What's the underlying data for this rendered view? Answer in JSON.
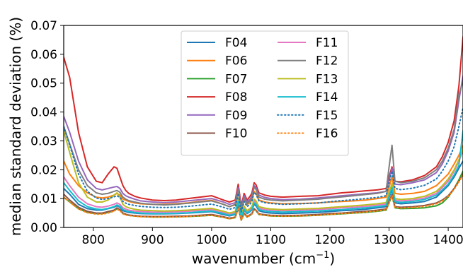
{
  "chart_data": {
    "type": "line",
    "title": "",
    "xlabel": "wavenumber (cm",
    "xlabel_superscript": "−1",
    "xlabel_suffix": ")",
    "ylabel": "median standard deviation (%)",
    "xlim": [
      750,
      1425
    ],
    "ylim": [
      0,
      0.07
    ],
    "xticks": [
      800,
      900,
      1000,
      1100,
      1200,
      1300,
      1400
    ],
    "yticks": [
      0.0,
      0.01,
      0.02,
      0.03,
      0.04,
      0.05,
      0.06,
      0.07
    ],
    "xtick_labels": [
      "800",
      "900",
      "1000",
      "1100",
      "1200",
      "1300",
      "1400"
    ],
    "ytick_labels": [
      "0.00",
      "0.01",
      "0.02",
      "0.03",
      "0.04",
      "0.05",
      "0.06",
      "0.07"
    ],
    "grid": false,
    "legend_placement": "top-center",
    "legend_columns": 2,
    "x": [
      750,
      760,
      775,
      790,
      805,
      815,
      825,
      835,
      840,
      845,
      850,
      855,
      860,
      870,
      880,
      900,
      920,
      940,
      960,
      980,
      1000,
      1020,
      1030,
      1040,
      1045,
      1050,
      1055,
      1060,
      1065,
      1068,
      1072,
      1075,
      1080,
      1090,
      1100,
      1120,
      1150,
      1180,
      1200,
      1220,
      1240,
      1260,
      1280,
      1295,
      1300,
      1305,
      1310,
      1320,
      1340,
      1360,
      1380,
      1390,
      1400,
      1410,
      1418,
      1425
    ],
    "series": [
      {
        "name": "F04",
        "color": "#1f77b4",
        "style": "solid",
        "values": [
          0.0135,
          0.0115,
          0.008,
          0.0065,
          0.006,
          0.006,
          0.0065,
          0.007,
          0.0075,
          0.007,
          0.0058,
          0.0055,
          0.0052,
          0.005,
          0.0048,
          0.0047,
          0.0047,
          0.0048,
          0.005,
          0.0052,
          0.0055,
          0.0045,
          0.004,
          0.0045,
          0.0085,
          0.0035,
          0.006,
          0.0048,
          0.0055,
          0.006,
          0.008,
          0.0075,
          0.0058,
          0.0052,
          0.005,
          0.0048,
          0.005,
          0.0052,
          0.0055,
          0.0058,
          0.006,
          0.0063,
          0.0068,
          0.0072,
          0.0105,
          0.013,
          0.0085,
          0.0082,
          0.0085,
          0.009,
          0.0105,
          0.0125,
          0.0145,
          0.0175,
          0.0205,
          0.023
        ]
      },
      {
        "name": "F06",
        "color": "#ff7f0e",
        "style": "solid",
        "values": [
          0.023,
          0.0185,
          0.0145,
          0.012,
          0.0105,
          0.0102,
          0.0105,
          0.0112,
          0.0118,
          0.0112,
          0.0098,
          0.0094,
          0.009,
          0.0085,
          0.0082,
          0.008,
          0.008,
          0.0082,
          0.0085,
          0.009,
          0.0094,
          0.008,
          0.0072,
          0.0078,
          0.0125,
          0.006,
          0.0095,
          0.0078,
          0.0088,
          0.0095,
          0.0125,
          0.0118,
          0.0095,
          0.0088,
          0.0085,
          0.0082,
          0.0083,
          0.0085,
          0.0088,
          0.009,
          0.0092,
          0.0095,
          0.01,
          0.0105,
          0.014,
          0.0175,
          0.0118,
          0.0115,
          0.0118,
          0.0125,
          0.0145,
          0.0165,
          0.0185,
          0.022,
          0.025,
          0.0285
        ]
      },
      {
        "name": "F07",
        "color": "#2ca02c",
        "style": "solid",
        "values": [
          0.0105,
          0.0088,
          0.0065,
          0.0052,
          0.0048,
          0.0048,
          0.0052,
          0.0058,
          0.0065,
          0.006,
          0.0048,
          0.0045,
          0.0042,
          0.004,
          0.0038,
          0.0036,
          0.0036,
          0.0037,
          0.0038,
          0.004,
          0.0042,
          0.0035,
          0.003,
          0.0034,
          0.0068,
          0.0025,
          0.0048,
          0.0036,
          0.0042,
          0.0046,
          0.0062,
          0.0058,
          0.0045,
          0.0042,
          0.004,
          0.0039,
          0.004,
          0.0042,
          0.0045,
          0.0047,
          0.005,
          0.0052,
          0.0056,
          0.006,
          0.0085,
          0.011,
          0.0068,
          0.0065,
          0.0066,
          0.0068,
          0.0075,
          0.0085,
          0.0105,
          0.0135,
          0.0165,
          0.0195
        ]
      },
      {
        "name": "F08",
        "color": "#d62728",
        "style": "solid",
        "values": [
          0.059,
          0.052,
          0.033,
          0.021,
          0.016,
          0.0155,
          0.0185,
          0.021,
          0.0205,
          0.0175,
          0.0145,
          0.0128,
          0.0118,
          0.0108,
          0.0102,
          0.0095,
          0.0093,
          0.0095,
          0.01,
          0.0105,
          0.011,
          0.0095,
          0.0088,
          0.0095,
          0.015,
          0.0075,
          0.0118,
          0.0095,
          0.0108,
          0.0118,
          0.0155,
          0.0148,
          0.012,
          0.0112,
          0.0108,
          0.0105,
          0.0108,
          0.011,
          0.0115,
          0.012,
          0.0123,
          0.0127,
          0.013,
          0.0135,
          0.0175,
          0.021,
          0.016,
          0.0158,
          0.0165,
          0.018,
          0.021,
          0.0245,
          0.0295,
          0.037,
          0.049,
          0.066
        ]
      },
      {
        "name": "F09",
        "color": "#9467bd",
        "style": "solid",
        "values": [
          0.0385,
          0.033,
          0.023,
          0.0165,
          0.0135,
          0.013,
          0.0135,
          0.014,
          0.0142,
          0.0135,
          0.0118,
          0.011,
          0.0105,
          0.0098,
          0.0092,
          0.0088,
          0.0086,
          0.0088,
          0.0092,
          0.0096,
          0.01,
          0.0088,
          0.008,
          0.0086,
          0.0138,
          0.0068,
          0.011,
          0.0088,
          0.0098,
          0.0108,
          0.0145,
          0.0138,
          0.0112,
          0.0104,
          0.01,
          0.0096,
          0.0098,
          0.0102,
          0.0106,
          0.011,
          0.0113,
          0.0117,
          0.012,
          0.0125,
          0.0165,
          0.0205,
          0.015,
          0.0148,
          0.0155,
          0.0165,
          0.019,
          0.022,
          0.0265,
          0.033,
          0.044,
          0.0525
        ]
      },
      {
        "name": "F10",
        "color": "#8c564b",
        "style": "solid",
        "values": [
          0.0115,
          0.0095,
          0.007,
          0.0056,
          0.005,
          0.005,
          0.0055,
          0.006,
          0.0068,
          0.0062,
          0.005,
          0.0046,
          0.0043,
          0.0041,
          0.0039,
          0.0038,
          0.0038,
          0.0039,
          0.004,
          0.0042,
          0.0045,
          0.0037,
          0.0032,
          0.0036,
          0.0072,
          0.0027,
          0.005,
          0.0038,
          0.0044,
          0.0048,
          0.0065,
          0.006,
          0.0047,
          0.0044,
          0.0042,
          0.0041,
          0.0042,
          0.0045,
          0.0048,
          0.005,
          0.0053,
          0.0056,
          0.006,
          0.0064,
          0.009,
          0.0115,
          0.0072,
          0.007,
          0.0072,
          0.0076,
          0.0085,
          0.0095,
          0.011,
          0.0135,
          0.016,
          0.0185
        ]
      },
      {
        "name": "F11",
        "color": "#e377c2",
        "style": "solid",
        "values": [
          0.0175,
          0.0145,
          0.0105,
          0.0082,
          0.0072,
          0.007,
          0.0074,
          0.008,
          0.0085,
          0.008,
          0.0068,
          0.0064,
          0.006,
          0.0057,
          0.0055,
          0.0053,
          0.0053,
          0.0054,
          0.0056,
          0.0059,
          0.0062,
          0.0052,
          0.0046,
          0.0051,
          0.0095,
          0.004,
          0.0068,
          0.0054,
          0.0062,
          0.0068,
          0.0092,
          0.0086,
          0.0067,
          0.0062,
          0.006,
          0.0058,
          0.006,
          0.0062,
          0.0065,
          0.0068,
          0.007,
          0.0073,
          0.0077,
          0.0081,
          0.0115,
          0.0145,
          0.0095,
          0.0092,
          0.0095,
          0.0102,
          0.0118,
          0.0138,
          0.016,
          0.0195,
          0.023,
          0.0265
        ]
      },
      {
        "name": "F12",
        "color": "#7f7f7f",
        "style": "solid",
        "values": [
          0.035,
          0.029,
          0.02,
          0.0145,
          0.012,
          0.0115,
          0.0118,
          0.0125,
          0.0128,
          0.0122,
          0.0105,
          0.0098,
          0.0093,
          0.0088,
          0.0084,
          0.008,
          0.0078,
          0.008,
          0.0084,
          0.0088,
          0.0092,
          0.008,
          0.0072,
          0.008,
          0.013,
          0.006,
          0.0102,
          0.0082,
          0.0092,
          0.0102,
          0.014,
          0.0132,
          0.0105,
          0.0098,
          0.0095,
          0.0092,
          0.0095,
          0.0098,
          0.0102,
          0.0106,
          0.011,
          0.0114,
          0.0118,
          0.0125,
          0.021,
          0.0285,
          0.016,
          0.0155,
          0.016,
          0.0172,
          0.02,
          0.023,
          0.0275,
          0.034,
          0.046,
          0.0505
        ]
      },
      {
        "name": "F13",
        "color": "#bcbd22",
        "style": "solid",
        "values": [
          0.0335,
          0.026,
          0.0155,
          0.0105,
          0.0088,
          0.0088,
          0.0095,
          0.0112,
          0.012,
          0.0105,
          0.008,
          0.0072,
          0.0068,
          0.0063,
          0.006,
          0.0058,
          0.0057,
          0.0058,
          0.006,
          0.0063,
          0.0066,
          0.0056,
          0.005,
          0.0055,
          0.0102,
          0.0043,
          0.0074,
          0.0058,
          0.0066,
          0.0072,
          0.0098,
          0.0092,
          0.0072,
          0.0067,
          0.0064,
          0.0062,
          0.0064,
          0.0066,
          0.0069,
          0.0072,
          0.0075,
          0.0078,
          0.0082,
          0.0086,
          0.0122,
          0.0152,
          0.01,
          0.0097,
          0.01,
          0.0108,
          0.0125,
          0.0145,
          0.0168,
          0.02,
          0.0235,
          0.027
        ]
      },
      {
        "name": "F14",
        "color": "#17becf",
        "style": "solid",
        "values": [
          0.0155,
          0.0128,
          0.0092,
          0.0072,
          0.0064,
          0.0062,
          0.0066,
          0.0072,
          0.0078,
          0.0073,
          0.0062,
          0.0058,
          0.0055,
          0.0052,
          0.005,
          0.0048,
          0.0048,
          0.0049,
          0.0051,
          0.0054,
          0.0057,
          0.0048,
          0.0042,
          0.0047,
          0.009,
          0.0036,
          0.0063,
          0.005,
          0.0057,
          0.0062,
          0.0085,
          0.008,
          0.0062,
          0.0057,
          0.0055,
          0.0053,
          0.0055,
          0.0057,
          0.006,
          0.0062,
          0.0065,
          0.0068,
          0.0072,
          0.0076,
          0.0108,
          0.0138,
          0.009,
          0.0087,
          0.009,
          0.0097,
          0.0112,
          0.013,
          0.015,
          0.0182,
          0.0215,
          0.0335
        ]
      },
      {
        "name": "F15",
        "color": "#1f77b4",
        "style": "dotted",
        "values": [
          0.035,
          0.0285,
          0.0185,
          0.0125,
          0.0102,
          0.0097,
          0.01,
          0.0106,
          0.011,
          0.0104,
          0.009,
          0.0084,
          0.008,
          0.0076,
          0.0073,
          0.007,
          0.0069,
          0.007,
          0.0073,
          0.0077,
          0.0081,
          0.007,
          0.0063,
          0.0069,
          0.0118,
          0.0053,
          0.009,
          0.0072,
          0.0081,
          0.0089,
          0.0122,
          0.0115,
          0.0092,
          0.0086,
          0.0083,
          0.008,
          0.0082,
          0.0085,
          0.0089,
          0.0093,
          0.0096,
          0.01,
          0.0104,
          0.011,
          0.0155,
          0.0195,
          0.0135,
          0.0131,
          0.0136,
          0.0146,
          0.0168,
          0.0195,
          0.023,
          0.028,
          0.035,
          0.0415
        ]
      },
      {
        "name": "F16",
        "color": "#ff7f0e",
        "style": "dotted",
        "values": [
          0.0105,
          0.0088,
          0.0064,
          0.0051,
          0.0046,
          0.0046,
          0.005,
          0.0056,
          0.0063,
          0.0058,
          0.0047,
          0.0043,
          0.0041,
          0.0039,
          0.0037,
          0.0036,
          0.0036,
          0.0036,
          0.0038,
          0.004,
          0.0042,
          0.0035,
          0.003,
          0.0034,
          0.0068,
          0.0025,
          0.0047,
          0.0036,
          0.0041,
          0.0046,
          0.0062,
          0.0058,
          0.0045,
          0.0042,
          0.004,
          0.0039,
          0.004,
          0.0042,
          0.0045,
          0.0048,
          0.005,
          0.0053,
          0.0057,
          0.0061,
          0.0086,
          0.011,
          0.007,
          0.0067,
          0.0069,
          0.0073,
          0.0082,
          0.0092,
          0.0108,
          0.0132,
          0.0158,
          0.0182
        ]
      }
    ]
  }
}
